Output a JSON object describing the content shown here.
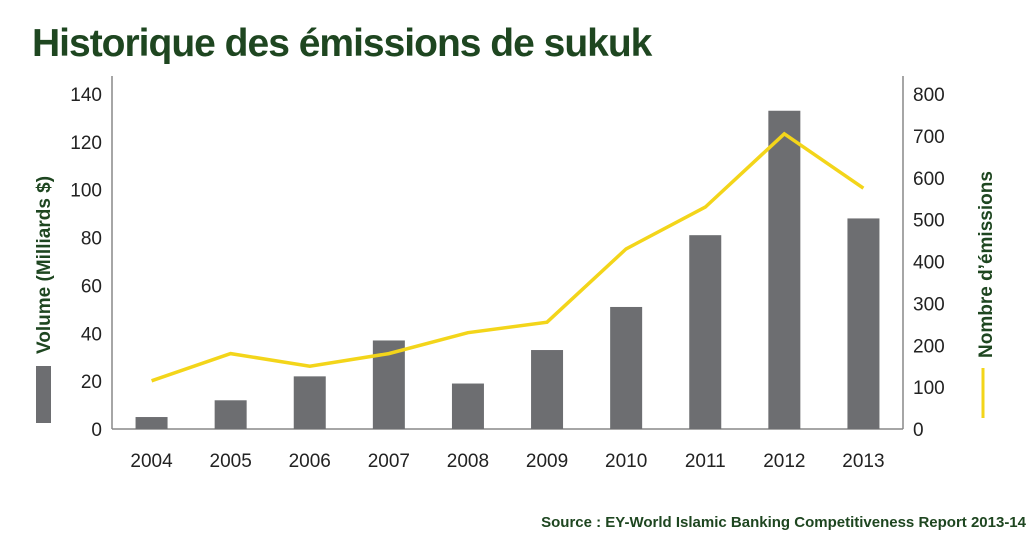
{
  "title": "Historique des émissions de sukuk",
  "source": "Source : EY-World Islamic Banking Competitiveness Report 2013-14",
  "chart_data": {
    "type": "bar",
    "categories": [
      "2004",
      "2005",
      "2006",
      "2007",
      "2008",
      "2009",
      "2010",
      "2011",
      "2012",
      "2013"
    ],
    "series": [
      {
        "name": "Volume (Milliards $)",
        "type": "bar",
        "axis": "left",
        "color": "#6d6e71",
        "values": [
          5,
          12,
          22,
          37,
          19,
          33,
          51,
          81,
          133,
          88
        ]
      },
      {
        "name": "Nombre d'émissions",
        "type": "line",
        "axis": "right",
        "color": "#f3d51a",
        "values": [
          115,
          180,
          150,
          180,
          230,
          255,
          430,
          530,
          705,
          575
        ]
      }
    ],
    "ylabel": "Volume (Milliards $)",
    "y2label": "Nombre d’émissions",
    "ylim": [
      0,
      140
    ],
    "y2lim": [
      0,
      800
    ],
    "yticks": [
      "0",
      "20",
      "40",
      "60",
      "80",
      "100",
      "120",
      "140"
    ],
    "y2ticks": [
      "0",
      "100",
      "200",
      "300",
      "400",
      "500",
      "600",
      "700",
      "800"
    ],
    "grid": false,
    "legend": "axis-titles"
  }
}
